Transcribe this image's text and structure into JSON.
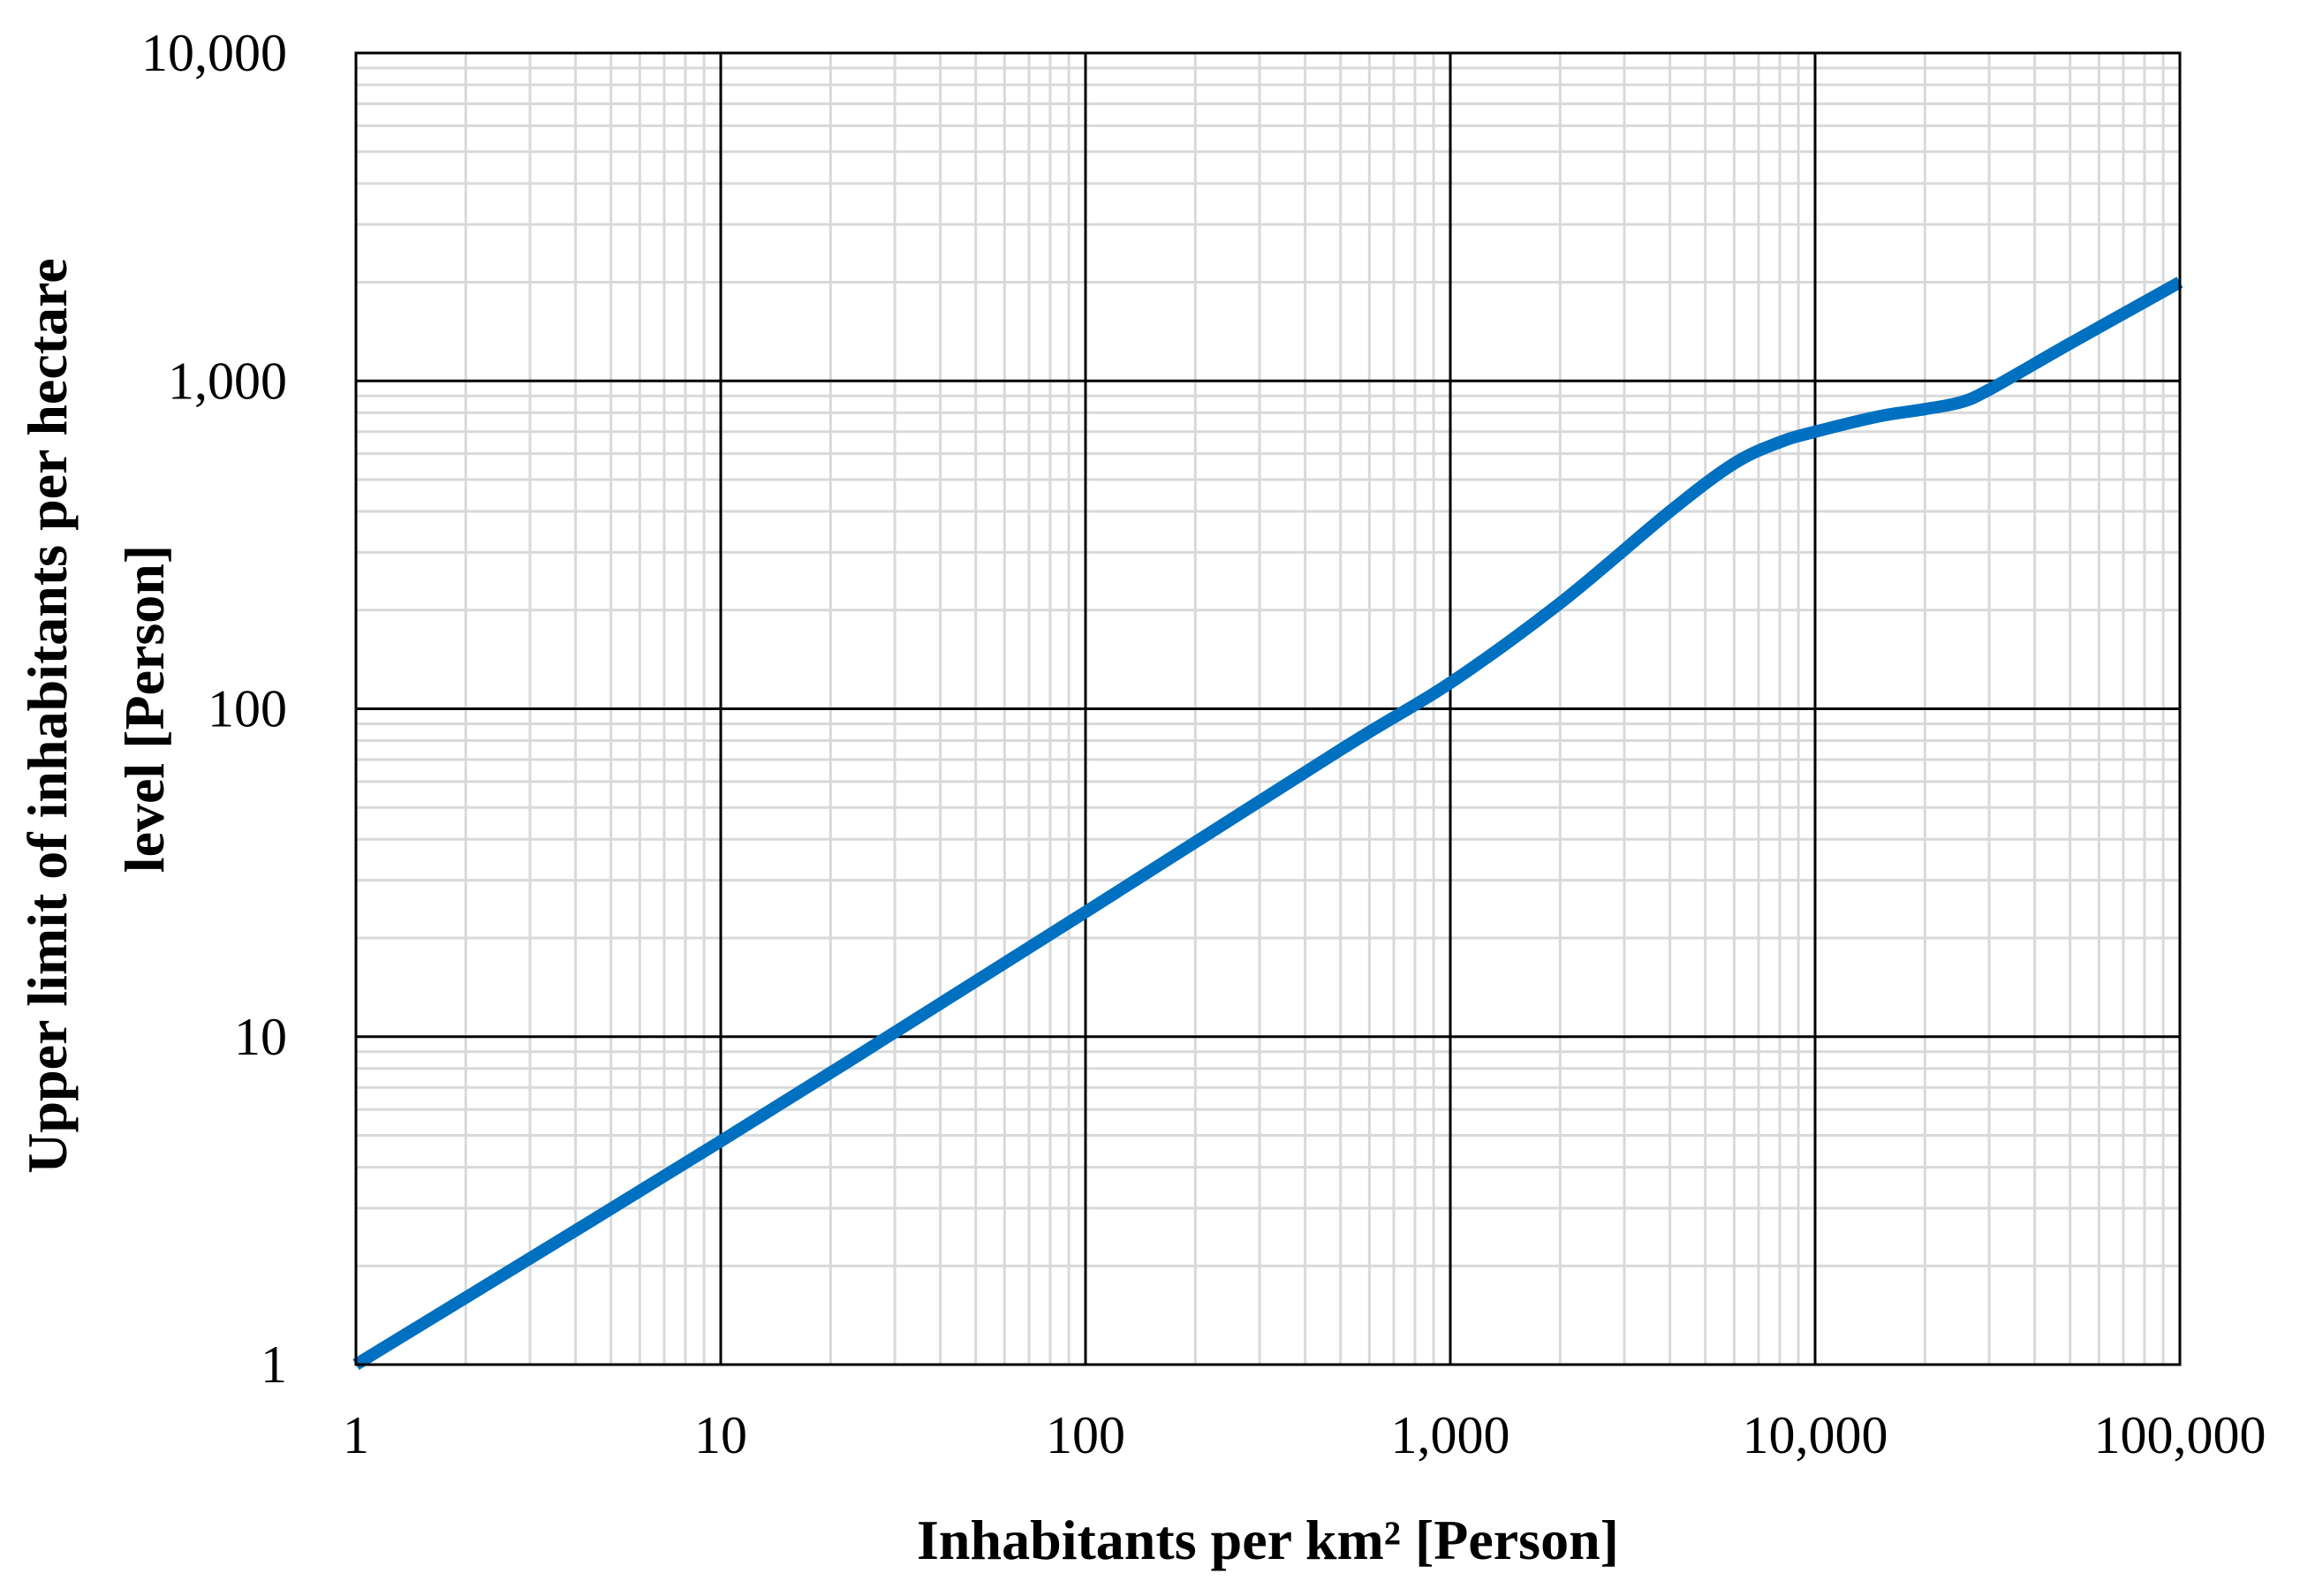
{
  "chart_data": {
    "type": "line",
    "x_scale": "log",
    "y_scale": "log",
    "xlim": [
      1,
      100000
    ],
    "ylim": [
      1,
      10000
    ],
    "x_ticks": [
      1,
      10,
      100,
      1000,
      10000,
      100000
    ],
    "x_tick_labels": [
      "1",
      "10",
      "100",
      "1,000",
      "10,000",
      "100,000"
    ],
    "y_ticks": [
      1,
      10,
      100,
      1000,
      10000
    ],
    "y_tick_labels": [
      "1",
      "10",
      "100",
      "1,000",
      "10,000"
    ],
    "xlabel": "Inhabitants per km² [Person]",
    "ylabel_lines": [
      "Upper limit of inhabitants per hectare",
      "level [Person]"
    ],
    "grid": true,
    "series": [
      {
        "name": "Upper limit",
        "color": "#0070c0",
        "x": [
          1,
          10,
          100,
          500,
          1000,
          2000,
          4000,
          6000,
          8000,
          10000,
          15000,
          20000,
          25000,
          30000,
          50000,
          100000
        ],
        "y": [
          1,
          4.8,
          24,
          75,
          120,
          210,
          400,
          560,
          650,
          700,
          780,
          820,
          860,
          940,
          1300,
          2000
        ]
      }
    ]
  },
  "colors": {
    "major_grid": "#000000",
    "minor_grid": "#d9d9d9",
    "frame": "#000000",
    "line": "#0070c0"
  }
}
